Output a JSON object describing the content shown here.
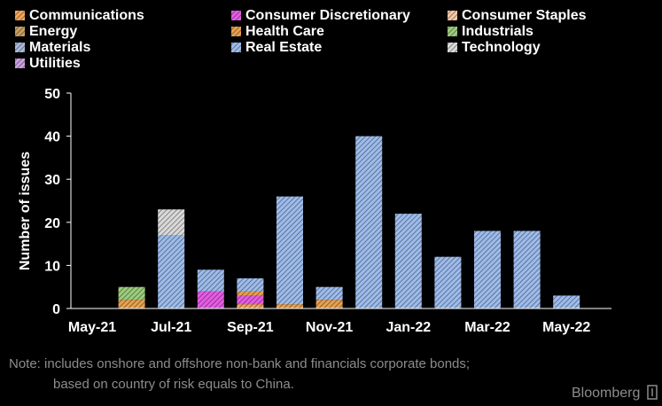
{
  "chart_data": {
    "type": "bar",
    "stacked": true,
    "ylabel": "Number of issues",
    "xlabel": "",
    "ylim": [
      0,
      50
    ],
    "yticks": [
      0,
      10,
      20,
      30,
      40,
      50
    ],
    "grid": false,
    "legend_position": "top",
    "categories": [
      "May-21",
      "Jun-21",
      "Jul-21",
      "Aug-21",
      "Sep-21",
      "Oct-21",
      "Nov-21",
      "Dec-21",
      "Jan-22",
      "Feb-22",
      "Mar-22",
      "Apr-22",
      "May-22"
    ],
    "xtick_labels": [
      "May-21",
      "Jul-21",
      "Sep-21",
      "Nov-21",
      "Jan-22",
      "Mar-22",
      "May-22"
    ],
    "series": [
      {
        "name": "Communications",
        "color": "#f2a65a",
        "values": [
          0,
          0,
          0,
          0,
          1,
          0,
          0,
          0,
          0,
          0,
          0,
          0,
          0
        ]
      },
      {
        "name": "Consumer Discretionary",
        "color": "#e65ce6",
        "values": [
          0,
          0,
          0,
          4,
          2,
          0,
          0,
          0,
          0,
          0,
          0,
          0,
          0
        ]
      },
      {
        "name": "Consumer Staples",
        "color": "#f4c7a6",
        "values": [
          0,
          0,
          0,
          0,
          0,
          0,
          0,
          0,
          0,
          0,
          0,
          0,
          0
        ]
      },
      {
        "name": "Energy",
        "color": "#c8a060",
        "values": [
          0,
          0,
          0,
          0,
          0,
          0,
          0,
          0,
          0,
          0,
          0,
          0,
          0
        ]
      },
      {
        "name": "Health Care",
        "color": "#e8a050",
        "values": [
          0,
          2,
          0,
          0,
          1,
          1,
          2,
          0,
          0,
          0,
          0,
          0,
          0
        ]
      },
      {
        "name": "Industrials",
        "color": "#9ccc7c",
        "values": [
          0,
          3,
          0,
          0,
          0,
          0,
          0,
          0,
          0,
          0,
          0,
          0,
          0
        ]
      },
      {
        "name": "Materials",
        "color": "#a8b8d8",
        "values": [
          0,
          0,
          0,
          0,
          0,
          0,
          0,
          0,
          0,
          0,
          0,
          0,
          0
        ]
      },
      {
        "name": "Real Estate",
        "color": "#9dbcec",
        "values": [
          0,
          0,
          17,
          5,
          3,
          25,
          3,
          40,
          22,
          12,
          18,
          18,
          3
        ]
      },
      {
        "name": "Technology",
        "color": "#d9d9d9",
        "values": [
          0,
          0,
          6,
          0,
          0,
          0,
          0,
          0,
          0,
          0,
          0,
          0,
          0
        ]
      },
      {
        "name": "Utilities",
        "color": "#c9a0e0",
        "values": [
          0,
          0,
          0,
          0,
          0,
          0,
          0,
          0,
          0,
          0,
          0,
          0,
          0
        ]
      }
    ]
  },
  "note": {
    "line1": "Note: includes onshore and offshore non-bank and financials corporate bonds;",
    "line2": "based on country of risk equals to China."
  },
  "brand": {
    "label": "Bloomberg",
    "color": "#8c8c8c"
  },
  "colors": {
    "background": "#000000",
    "text": "#ffffff",
    "axis": "#ffffff"
  }
}
